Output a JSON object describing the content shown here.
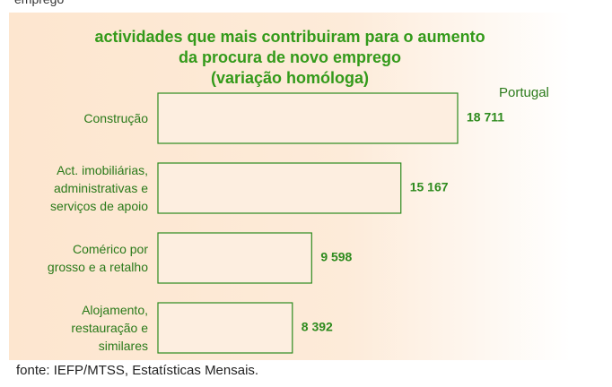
{
  "top_fragment": "emprego",
  "chart_data": {
    "type": "hbar",
    "title": "actividades que mais contribuiram para o aumento\nda procura de novo emprego\n(variação homóloga)",
    "legend": "Portugal",
    "categories": [
      "Construção",
      "Act. imobiliárias,\nadministrativas e\nserviços de apoio",
      "Comérico por\ngrosso e a retalho",
      "Alojamento,\nrestauração e\nsimilares"
    ],
    "values": [
      18711,
      15167,
      9598,
      8392
    ],
    "value_labels": [
      "18 711",
      "15 167",
      "9 598",
      "8 392"
    ],
    "color": "#fdeee0",
    "edge_color": "#2e8b1e",
    "xlim": [
      0,
      20000
    ],
    "source": "fonte: IEFP/MTSS, Estatísticas Mensais."
  }
}
